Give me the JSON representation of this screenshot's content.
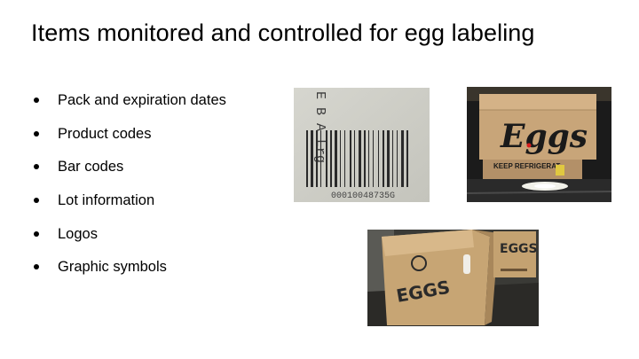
{
  "slide": {
    "title": "Items monitored and controlled for egg labeling",
    "bullets": [
      "Pack and expiration dates",
      "Product codes",
      "Bar codes",
      "Lot information",
      "Logos",
      "Graphic symbols"
    ]
  },
  "images": {
    "barcode_photo": {
      "code_text": "E B A Lrg",
      "number_text": "00010048735G"
    },
    "box_photo": {
      "brand_text": "Eggs",
      "label_text": "KEEP REFRIGERAT"
    },
    "conveyor_photo": {
      "left_box_text": "EGGS",
      "right_box_text": "EGGS"
    }
  }
}
